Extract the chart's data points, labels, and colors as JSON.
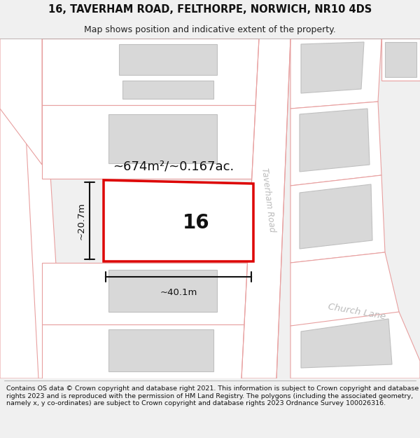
{
  "title_line1": "16, TAVERHAM ROAD, FELTHORPE, NORWICH, NR10 4DS",
  "title_line2": "Map shows position and indicative extent of the property.",
  "footer_text": "Contains OS data © Crown copyright and database right 2021. This information is subject to Crown copyright and database rights 2023 and is reproduced with the permission of HM Land Registry. The polygons (including the associated geometry, namely x, y co-ordinates) are subject to Crown copyright and database rights 2023 Ordnance Survey 100026316.",
  "area_text": "~674m²/~0.167ac.",
  "width_text": "~40.1m",
  "height_text": "~20.7m",
  "plot_number": "16",
  "road_label1": "Taverham Road",
  "road_label2": "Church Lane",
  "bg_color": "#ffffff",
  "fig_bg": "#f0f0f0",
  "plot_outline_color": "#e8a0a0",
  "building_fill": "#d8d8d8",
  "building_edge": "#c0c0c0",
  "highlight_color": "#dd0000",
  "highlight_fill": "#ffffff",
  "dim_color": "#222222",
  "road_text_color": "#bbbbbb",
  "title_fontsize": 10.5,
  "subtitle_fontsize": 9,
  "footer_fontsize": 6.8
}
